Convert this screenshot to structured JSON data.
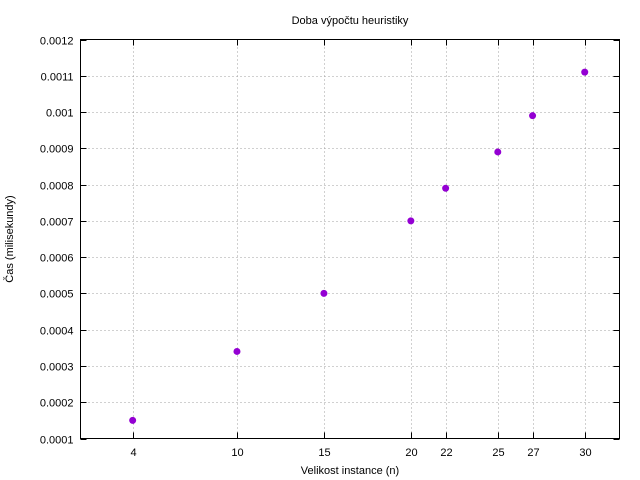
{
  "chart_data": {
    "type": "scatter",
    "title": "Doba výpočtu heuristiky",
    "xlabel": "Velikost instance (n)",
    "ylabel": "Čas (milisekundy)",
    "x_ticks": [
      4,
      10,
      15,
      20,
      22,
      25,
      27,
      30
    ],
    "y_ticks": [
      "0.0001",
      "0.0002",
      "0.0003",
      "0.0004",
      "0.0005",
      "0.0006",
      "0.0007",
      "0.0008",
      "0.0009",
      "0.001",
      "0.0011",
      "0.0012"
    ],
    "xlim": [
      1,
      32
    ],
    "ylim": [
      0.0001,
      0.0012
    ],
    "grid": true,
    "legend": "none",
    "point_color": "#9400d3",
    "series": [
      {
        "x": [
          4,
          10,
          15,
          20,
          22,
          25,
          27,
          30
        ],
        "y": [
          0.00015,
          0.00034,
          0.0005,
          0.0007,
          0.00079,
          0.00089,
          0.00099,
          0.00111
        ]
      }
    ]
  }
}
